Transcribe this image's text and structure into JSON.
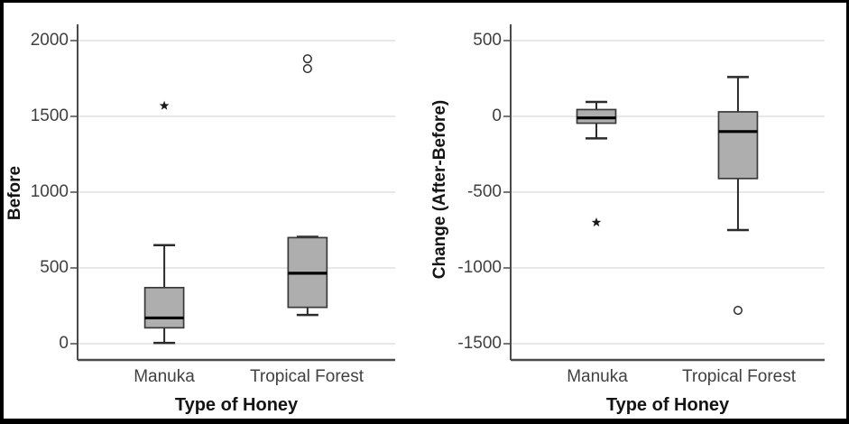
{
  "figure": {
    "description_left_title": "Before",
    "description_right_title": "Change (After-Before)"
  },
  "style": {
    "background": "#ffffff",
    "frame_border": "#000000",
    "grid_color": "#d9d9d9",
    "axis_color": "#4a4a4a",
    "whisker_color": "#2b2b2b",
    "box_fill": "#aeaeae",
    "box_stroke": "#3a3a3a",
    "median_color": "#000000",
    "tick_label_color": "#3f3f3f",
    "title_color": "#141414"
  },
  "chart_data": [
    {
      "type": "boxplot",
      "ylabel": "Before",
      "xlabel": "Type of Honey",
      "categories": [
        "Manuka",
        "Tropical Forest"
      ],
      "yticks": [
        2000,
        1500,
        1000,
        500,
        0
      ],
      "ylim": [
        -110,
        2115
      ],
      "grid": true,
      "legend": "none",
      "series": [
        {
          "category": "Manuka",
          "min": 5,
          "q1": 105,
          "median": 170,
          "q3": 370,
          "max": 650,
          "outliers": [
            {
              "value": 1570,
              "marker": "star"
            }
          ]
        },
        {
          "category": "Tropical Forest",
          "min": 190,
          "q1": 240,
          "median": 465,
          "q3": 700,
          "max": 705,
          "outliers": [
            {
              "value": 1880,
              "marker": "circle"
            },
            {
              "value": 1815,
              "marker": "circle"
            }
          ]
        }
      ]
    },
    {
      "type": "boxplot",
      "ylabel": "Change (After-Before)",
      "xlabel": "Type of Honey",
      "categories": [
        "Manuka",
        "Tropical Forest"
      ],
      "yticks": [
        500,
        0,
        -500,
        -1000,
        -1500
      ],
      "ylim": [
        -1605,
        610
      ],
      "grid": true,
      "legend": "none",
      "series": [
        {
          "category": "Manuka",
          "min": -145,
          "q1": -45,
          "median": -10,
          "q3": 45,
          "max": 95,
          "outliers": [
            {
              "value": -700,
              "marker": "star"
            }
          ]
        },
        {
          "category": "Tropical Forest",
          "min": -750,
          "q1": -410,
          "median": -100,
          "q3": 30,
          "max": 260,
          "outliers": [
            {
              "value": -1280,
              "marker": "circle"
            }
          ]
        }
      ]
    }
  ]
}
